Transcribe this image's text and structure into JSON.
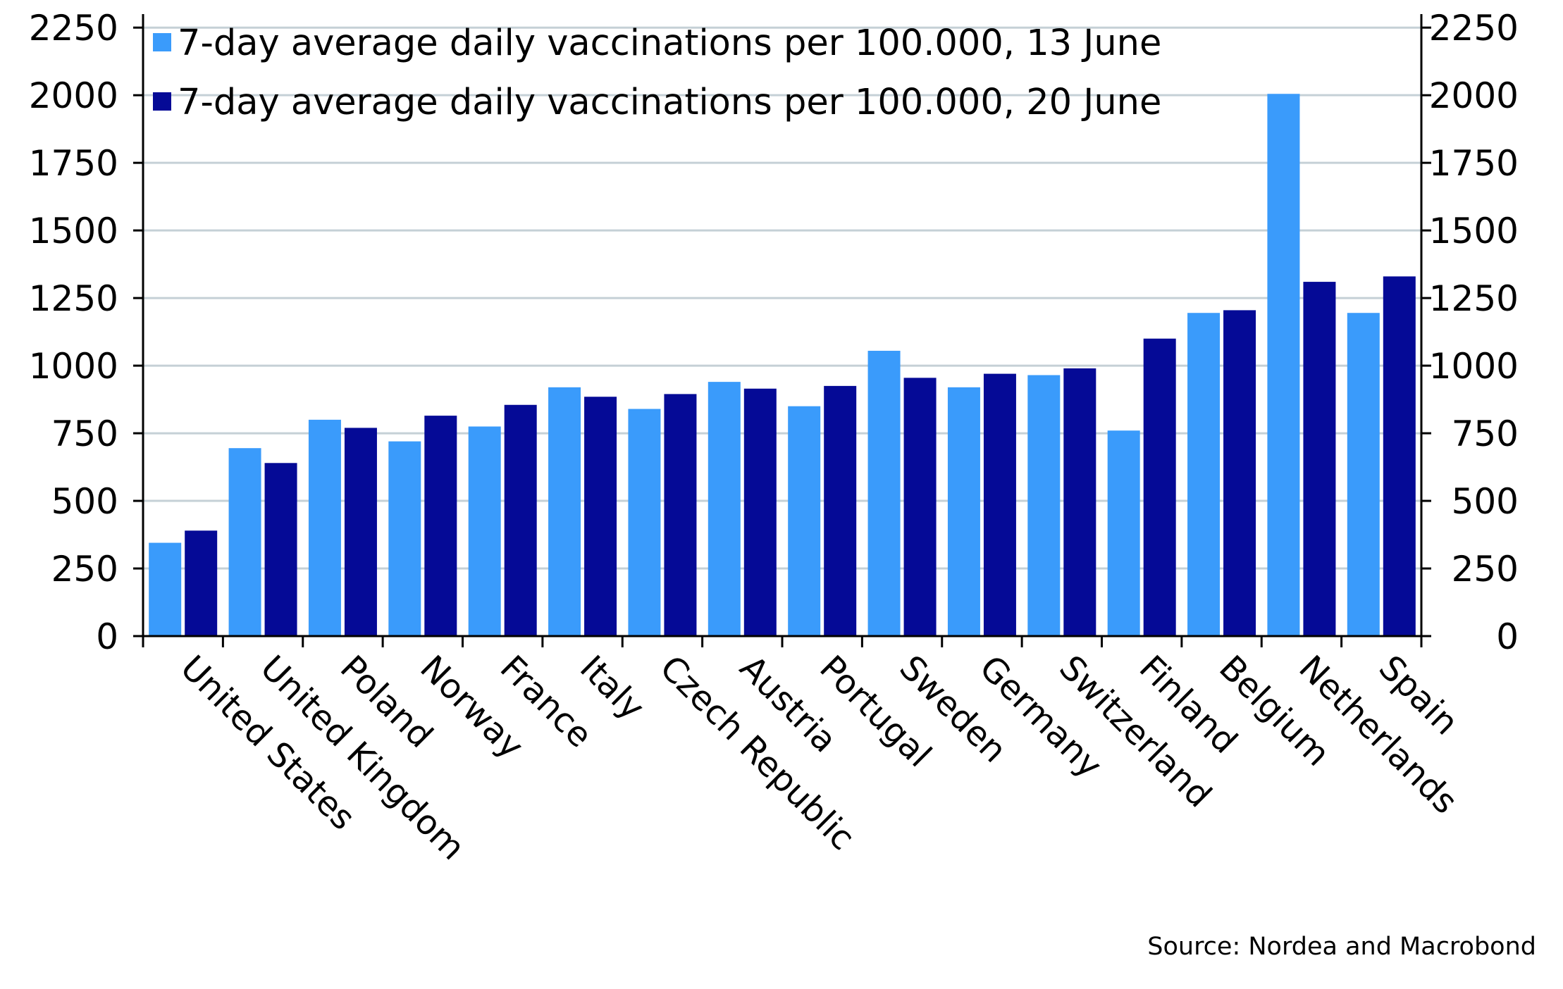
{
  "chart_data": {
    "type": "bar",
    "categories": [
      "United States",
      "United Kingdom",
      "Poland",
      "Norway",
      "France",
      "Italy",
      "Czech Republic",
      "Austria",
      "Portugal",
      "Sweden",
      "Germany",
      "Switzerland",
      "Finland",
      "Belgium",
      "Netherlands",
      "Spain"
    ],
    "series": [
      {
        "name": "7-day average daily vaccinations per 100.000, 13 June",
        "color": "#3a9bfb",
        "values": [
          345,
          695,
          800,
          720,
          775,
          920,
          840,
          940,
          850,
          1055,
          920,
          965,
          760,
          1195,
          2005,
          1195
        ]
      },
      {
        "name": "7-day average daily vaccinations per 100.000, 20 June",
        "color": "#050a96",
        "values": [
          390,
          640,
          770,
          815,
          855,
          885,
          895,
          915,
          925,
          955,
          970,
          990,
          1100,
          1205,
          1310,
          1330
        ]
      }
    ],
    "yticks": [
      0,
      250,
      500,
      750,
      1000,
      1250,
      1500,
      1750,
      2000,
      2250
    ],
    "yticks_right": [
      0,
      250,
      500,
      750,
      1000,
      1250,
      1500,
      1750,
      2000,
      2250
    ],
    "ylim": [
      0,
      2300
    ],
    "grid": true,
    "legend_position": "top-left",
    "source": "Source: Nordea and Macrobond"
  }
}
